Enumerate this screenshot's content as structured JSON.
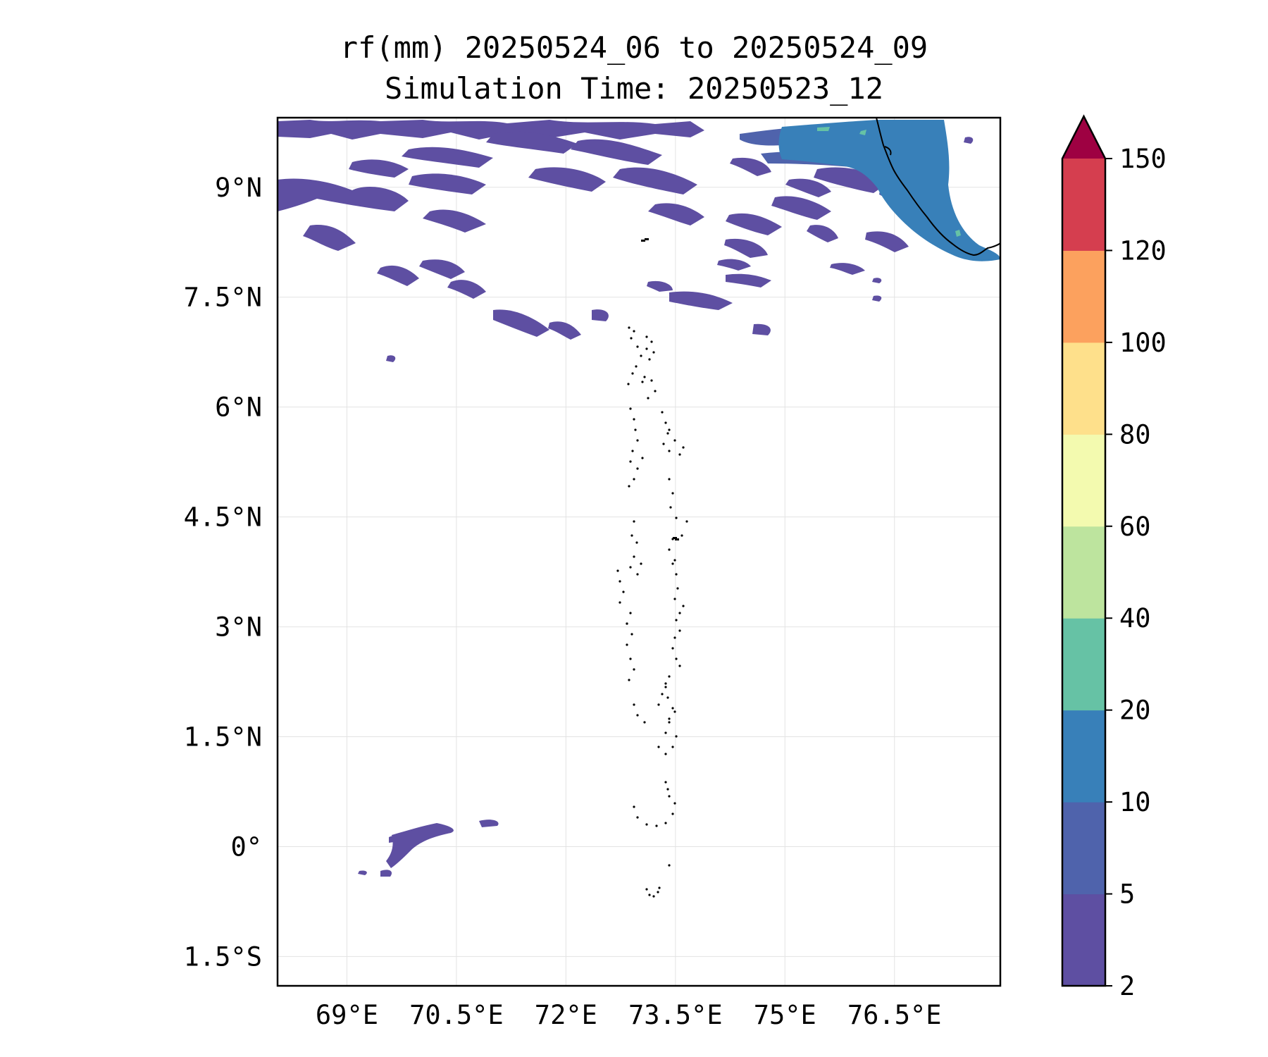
{
  "title": {
    "line1": "rf(mm) 20250524_06 to 20250524_09",
    "line2": "Simulation Time: 20250523_12"
  },
  "map": {
    "lat_ticks": [
      {
        "value": 9,
        "label": "9°N"
      },
      {
        "value": 7.5,
        "label": "7.5°N"
      },
      {
        "value": 6,
        "label": "6°N"
      },
      {
        "value": 4.5,
        "label": "4.5°N"
      },
      {
        "value": 3,
        "label": "3°N"
      },
      {
        "value": 1.5,
        "label": "1.5°N"
      },
      {
        "value": 0,
        "label": "0°"
      },
      {
        "value": -1.5,
        "label": "1.5°S"
      }
    ],
    "lon_ticks": [
      {
        "value": 69,
        "label": "69°E"
      },
      {
        "value": 70.5,
        "label": "70.5°E"
      },
      {
        "value": 72,
        "label": "72°E"
      },
      {
        "value": 73.5,
        "label": "73.5°E"
      },
      {
        "value": 75,
        "label": "75°E"
      },
      {
        "value": 76.5,
        "label": "76.5°E"
      }
    ],
    "extent": {
      "lon": [
        68.05,
        77.95
      ],
      "lat": [
        -1.9,
        9.95
      ]
    }
  },
  "colorbar": {
    "levels": [
      "2",
      "5",
      "10",
      "20",
      "40",
      "60",
      "80",
      "100",
      "120",
      "150"
    ],
    "colors": [
      "#5e4fa2",
      "#4f63ac",
      "#3880b9",
      "#66c2a5",
      "#bde49e",
      "#f3faaf",
      "#fee08b",
      "#fca15e",
      "#d53e4f",
      "#9e0142"
    ],
    "extend": "max"
  }
}
